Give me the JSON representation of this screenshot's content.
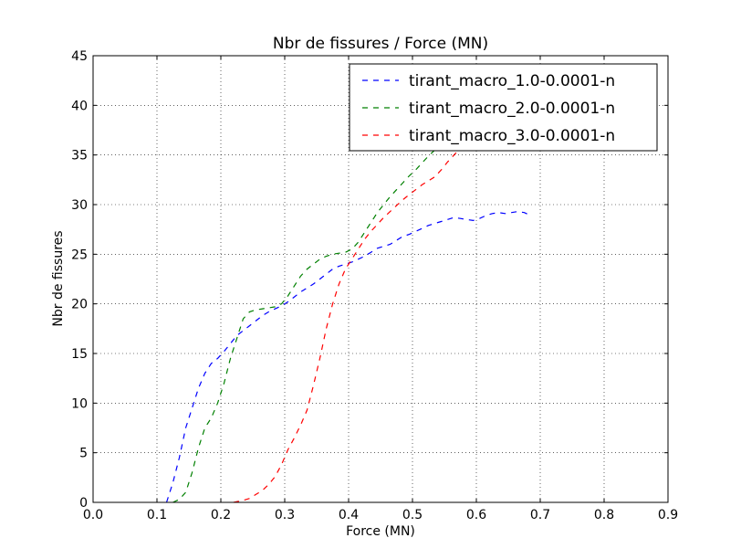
{
  "chart_data": {
    "type": "line",
    "title": "Nbr de fissures / Force (MN)",
    "xlabel": "Force (MN)",
    "ylabel": "Nbr de fissures",
    "xlim": [
      0.0,
      0.9
    ],
    "ylim": [
      0,
      45
    ],
    "xticks": [
      "0.0",
      "0.1",
      "0.2",
      "0.3",
      "0.4",
      "0.5",
      "0.6",
      "0.7",
      "0.8",
      "0.9"
    ],
    "yticks": [
      "0",
      "5",
      "10",
      "15",
      "20",
      "25",
      "30",
      "35",
      "40",
      "45"
    ],
    "grid": true,
    "legend_position": "top-right",
    "series": [
      {
        "name": "tirant_macro_1.0-0.0001-n",
        "color": "#0000ff",
        "x": [
          0.115,
          0.125,
          0.135,
          0.145,
          0.155,
          0.165,
          0.175,
          0.185,
          0.195,
          0.205,
          0.215,
          0.225,
          0.235,
          0.245,
          0.255,
          0.265,
          0.275,
          0.285,
          0.295,
          0.305,
          0.315,
          0.325,
          0.335,
          0.345,
          0.355,
          0.365,
          0.375,
          0.385,
          0.395,
          0.405,
          0.415,
          0.425,
          0.435,
          0.445,
          0.455,
          0.465,
          0.475,
          0.485,
          0.495,
          0.505,
          0.515,
          0.525,
          0.535,
          0.545,
          0.555,
          0.565,
          0.575,
          0.585,
          0.595,
          0.605,
          0.615,
          0.625,
          0.635,
          0.645,
          0.655,
          0.665,
          0.675,
          0.685
        ],
        "y": [
          0,
          2,
          4.5,
          7.5,
          9.5,
          11.5,
          13,
          14,
          14.5,
          15.2,
          16,
          16.8,
          17.3,
          17.8,
          18.3,
          18.8,
          19.2,
          19.5,
          19.8,
          20.2,
          20.7,
          21.2,
          21.6,
          22,
          22.5,
          23,
          23.5,
          23.8,
          24,
          24.2,
          24.5,
          24.8,
          25.2,
          25.6,
          25.8,
          26,
          26.4,
          26.8,
          27,
          27.3,
          27.6,
          27.9,
          28.1,
          28.3,
          28.5,
          28.7,
          28.6,
          28.5,
          28.4,
          28.6,
          28.9,
          29.1,
          29.2,
          29.1,
          29.2,
          29.3,
          29.2,
          28.9
        ]
      },
      {
        "name": "tirant_macro_2.0-0.0001-n",
        "color": "#008000",
        "x": [
          0.125,
          0.135,
          0.145,
          0.155,
          0.165,
          0.175,
          0.185,
          0.195,
          0.205,
          0.215,
          0.225,
          0.235,
          0.245,
          0.255,
          0.265,
          0.275,
          0.285,
          0.295,
          0.305,
          0.315,
          0.325,
          0.335,
          0.345,
          0.355,
          0.365,
          0.375,
          0.385,
          0.395,
          0.405,
          0.415,
          0.425,
          0.435,
          0.445,
          0.455,
          0.465,
          0.475,
          0.485,
          0.495,
          0.505,
          0.515,
          0.525,
          0.535,
          0.545,
          0.555,
          0.565,
          0.575,
          0.585,
          0.595,
          0.605,
          0.615,
          0.625,
          0.635,
          0.645,
          0.655,
          0.665,
          0.675,
          0.685
        ],
        "y": [
          0,
          0.3,
          1,
          3,
          5.5,
          7.5,
          8.5,
          10,
          12,
          14.5,
          16.5,
          18.5,
          19.2,
          19.4,
          19.5,
          19.6,
          19.7,
          20,
          20.8,
          21.8,
          22.8,
          23.5,
          24,
          24.5,
          24.8,
          25,
          25.1,
          25.2,
          25.5,
          26.2,
          27.2,
          28.2,
          29.2,
          30,
          30.8,
          31.5,
          32.2,
          32.9,
          33.5,
          34.2,
          34.9,
          35.5,
          36,
          36.5,
          36.9,
          37.2,
          37.5,
          37.8,
          38.1,
          38.4,
          38.7,
          39,
          39.2,
          39.4,
          39.6,
          39.8,
          40
        ]
      },
      {
        "name": "tirant_macro_3.0-0.0001-n",
        "color": "#ff0000",
        "x": [
          0.22,
          0.235,
          0.245,
          0.255,
          0.265,
          0.275,
          0.285,
          0.295,
          0.305,
          0.315,
          0.325,
          0.335,
          0.345,
          0.355,
          0.365,
          0.375,
          0.385,
          0.395,
          0.405,
          0.415,
          0.425,
          0.435,
          0.445,
          0.455,
          0.465,
          0.475,
          0.485,
          0.495,
          0.505,
          0.515,
          0.525,
          0.535,
          0.545,
          0.555,
          0.565,
          0.575,
          0.585,
          0.595,
          0.605,
          0.615,
          0.625,
          0.635,
          0.645,
          0.655,
          0.665,
          0.675,
          0.685,
          0.695,
          0.705,
          0.715,
          0.725,
          0.735,
          0.745,
          0.755,
          0.765,
          0.775,
          0.785,
          0.795,
          0.805
        ],
        "y": [
          0,
          0.2,
          0.4,
          0.8,
          1.2,
          1.8,
          2.6,
          3.8,
          5.3,
          6.5,
          7.8,
          9.3,
          11.8,
          14.5,
          17.5,
          20,
          22,
          23.5,
          24.5,
          25.5,
          26.5,
          27.3,
          28,
          28.7,
          29.3,
          29.9,
          30.5,
          31,
          31.5,
          32,
          32.4,
          32.8,
          33.5,
          34.3,
          35,
          35.7,
          36.3,
          37,
          37.6,
          38.1,
          38.5,
          38.9,
          38.7,
          38.5,
          38.8,
          39.2,
          39.1,
          38.9,
          39,
          37.4,
          38.2,
          38.8,
          39.1,
          39.5,
          40,
          40.4,
          40.8,
          41.5,
          42.5
        ]
      }
    ]
  }
}
